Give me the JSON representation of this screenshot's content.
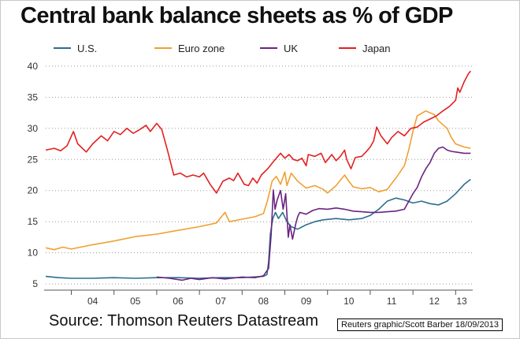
{
  "chart_data": {
    "type": "line",
    "title": "Central bank balance sheets as % of GDP",
    "xlabel": "",
    "ylabel": "",
    "x_range": [
      2003.4,
      2013.4
    ],
    "ylim": [
      4,
      41
    ],
    "y_ticks": [
      5,
      10,
      15,
      20,
      25,
      30,
      35,
      40
    ],
    "x_ticks": [
      {
        "label": "04",
        "x": 2004.5
      },
      {
        "label": "05",
        "x": 2005.5
      },
      {
        "label": "06",
        "x": 2006.5
      },
      {
        "label": "07",
        "x": 2007.5
      },
      {
        "label": "08",
        "x": 2008.5
      },
      {
        "label": "09",
        "x": 2009.5
      },
      {
        "label": "10",
        "x": 2010.5
      },
      {
        "label": "11",
        "x": 2011.5
      },
      {
        "label": "12",
        "x": 2012.5
      },
      {
        "label": "13",
        "x": 2013.5
      }
    ],
    "grid": "horizontal dotted",
    "legend_position": "top",
    "series": [
      {
        "name": "U.S.",
        "color": "#2b6e8f",
        "points": [
          [
            2003.4,
            6.2
          ],
          [
            2003.7,
            6.0
          ],
          [
            2004.0,
            5.9
          ],
          [
            2004.5,
            5.9
          ],
          [
            2005.0,
            6.0
          ],
          [
            2005.5,
            5.9
          ],
          [
            2006.0,
            6.0
          ],
          [
            2006.5,
            6.0
          ],
          [
            2007.0,
            5.9
          ],
          [
            2007.5,
            6.0
          ],
          [
            2008.0,
            6.0
          ],
          [
            2008.5,
            6.2
          ],
          [
            2008.58,
            6.5
          ],
          [
            2008.62,
            8.5
          ],
          [
            2008.66,
            13.0
          ],
          [
            2008.72,
            15.5
          ],
          [
            2008.78,
            16.5
          ],
          [
            2008.85,
            15.5
          ],
          [
            2008.95,
            16.5
          ],
          [
            2009.05,
            15.0
          ],
          [
            2009.15,
            14.2
          ],
          [
            2009.3,
            13.8
          ],
          [
            2009.5,
            14.5
          ],
          [
            2009.7,
            15.0
          ],
          [
            2009.9,
            15.3
          ],
          [
            2010.2,
            15.5
          ],
          [
            2010.5,
            15.3
          ],
          [
            2010.8,
            15.5
          ],
          [
            2011.0,
            16.0
          ],
          [
            2011.2,
            17.0
          ],
          [
            2011.4,
            18.3
          ],
          [
            2011.6,
            18.8
          ],
          [
            2011.8,
            18.5
          ],
          [
            2012.0,
            18.0
          ],
          [
            2012.2,
            18.3
          ],
          [
            2012.4,
            17.9
          ],
          [
            2012.6,
            17.7
          ],
          [
            2012.8,
            18.3
          ],
          [
            2013.0,
            19.5
          ],
          [
            2013.2,
            21.0
          ],
          [
            2013.35,
            21.8
          ]
        ]
      },
      {
        "name": "Euro zone",
        "color": "#f0a030",
        "points": [
          [
            2003.4,
            10.8
          ],
          [
            2003.6,
            10.5
          ],
          [
            2003.8,
            10.9
          ],
          [
            2004.0,
            10.6
          ],
          [
            2004.5,
            11.3
          ],
          [
            2005.0,
            11.9
          ],
          [
            2005.5,
            12.6
          ],
          [
            2006.0,
            13.0
          ],
          [
            2006.5,
            13.6
          ],
          [
            2007.0,
            14.2
          ],
          [
            2007.4,
            14.8
          ],
          [
            2007.6,
            16.5
          ],
          [
            2007.7,
            15.0
          ],
          [
            2008.0,
            15.4
          ],
          [
            2008.3,
            15.8
          ],
          [
            2008.5,
            16.3
          ],
          [
            2008.6,
            18.5
          ],
          [
            2008.7,
            21.5
          ],
          [
            2008.8,
            22.3
          ],
          [
            2008.9,
            21.0
          ],
          [
            2009.0,
            23.0
          ],
          [
            2009.05,
            20.8
          ],
          [
            2009.15,
            22.8
          ],
          [
            2009.3,
            21.5
          ],
          [
            2009.5,
            20.4
          ],
          [
            2009.7,
            20.8
          ],
          [
            2009.9,
            20.2
          ],
          [
            2010.0,
            19.6
          ],
          [
            2010.2,
            20.8
          ],
          [
            2010.4,
            22.5
          ],
          [
            2010.5,
            21.5
          ],
          [
            2010.6,
            20.6
          ],
          [
            2010.8,
            20.3
          ],
          [
            2011.0,
            20.5
          ],
          [
            2011.2,
            19.8
          ],
          [
            2011.4,
            20.2
          ],
          [
            2011.6,
            22.0
          ],
          [
            2011.8,
            24.0
          ],
          [
            2011.9,
            26.5
          ],
          [
            2012.0,
            29.5
          ],
          [
            2012.1,
            32.0
          ],
          [
            2012.3,
            32.8
          ],
          [
            2012.5,
            32.2
          ],
          [
            2012.6,
            31.2
          ],
          [
            2012.8,
            30.0
          ],
          [
            2012.9,
            28.5
          ],
          [
            2013.0,
            27.5
          ],
          [
            2013.2,
            27.0
          ],
          [
            2013.35,
            26.8
          ]
        ]
      },
      {
        "name": "UK",
        "color": "#6a2480",
        "points": [
          [
            2006.0,
            6.1
          ],
          [
            2006.3,
            5.9
          ],
          [
            2006.6,
            5.6
          ],
          [
            2006.8,
            5.9
          ],
          [
            2007.0,
            5.7
          ],
          [
            2007.3,
            6.0
          ],
          [
            2007.6,
            5.8
          ],
          [
            2008.0,
            6.1
          ],
          [
            2008.3,
            6.0
          ],
          [
            2008.5,
            6.3
          ],
          [
            2008.62,
            7.5
          ],
          [
            2008.68,
            13.0
          ],
          [
            2008.73,
            20.1
          ],
          [
            2008.77,
            17.0
          ],
          [
            2008.82,
            18.5
          ],
          [
            2008.9,
            20.0
          ],
          [
            2008.96,
            17.0
          ],
          [
            2009.02,
            19.5
          ],
          [
            2009.08,
            12.5
          ],
          [
            2009.12,
            14.5
          ],
          [
            2009.18,
            12.2
          ],
          [
            2009.25,
            14.5
          ],
          [
            2009.3,
            15.8
          ],
          [
            2009.35,
            16.5
          ],
          [
            2009.5,
            16.2
          ],
          [
            2009.65,
            16.8
          ],
          [
            2009.8,
            17.1
          ],
          [
            2010.0,
            17.0
          ],
          [
            2010.2,
            17.2
          ],
          [
            2010.4,
            17.0
          ],
          [
            2010.6,
            16.7
          ],
          [
            2010.8,
            16.6
          ],
          [
            2011.0,
            16.5
          ],
          [
            2011.2,
            16.5
          ],
          [
            2011.4,
            16.6
          ],
          [
            2011.6,
            16.7
          ],
          [
            2011.8,
            17.0
          ],
          [
            2012.0,
            19.5
          ],
          [
            2012.1,
            20.5
          ],
          [
            2012.2,
            22.2
          ],
          [
            2012.3,
            23.5
          ],
          [
            2012.4,
            24.5
          ],
          [
            2012.5,
            26.0
          ],
          [
            2012.6,
            26.8
          ],
          [
            2012.7,
            27.0
          ],
          [
            2012.8,
            26.5
          ],
          [
            2012.9,
            26.3
          ],
          [
            2013.0,
            26.2
          ],
          [
            2013.2,
            26.0
          ],
          [
            2013.35,
            26.0
          ]
        ]
      },
      {
        "name": "Japan",
        "color": "#e32020",
        "points": [
          [
            2003.4,
            26.5
          ],
          [
            2003.6,
            26.8
          ],
          [
            2003.75,
            26.4
          ],
          [
            2003.9,
            27.2
          ],
          [
            2004.05,
            29.5
          ],
          [
            2004.15,
            27.5
          ],
          [
            2004.35,
            26.2
          ],
          [
            2004.5,
            27.5
          ],
          [
            2004.7,
            28.8
          ],
          [
            2004.85,
            28.0
          ],
          [
            2005.0,
            29.5
          ],
          [
            2005.15,
            29.0
          ],
          [
            2005.3,
            30.0
          ],
          [
            2005.45,
            29.2
          ],
          [
            2005.6,
            29.8
          ],
          [
            2005.75,
            30.5
          ],
          [
            2005.85,
            29.5
          ],
          [
            2006.0,
            30.8
          ],
          [
            2006.12,
            29.8
          ],
          [
            2006.25,
            26.5
          ],
          [
            2006.4,
            22.5
          ],
          [
            2006.55,
            22.8
          ],
          [
            2006.7,
            22.2
          ],
          [
            2006.85,
            22.5
          ],
          [
            2007.0,
            22.2
          ],
          [
            2007.1,
            22.8
          ],
          [
            2007.25,
            21.0
          ],
          [
            2007.4,
            19.6
          ],
          [
            2007.55,
            21.5
          ],
          [
            2007.7,
            22.0
          ],
          [
            2007.8,
            21.6
          ],
          [
            2007.9,
            22.8
          ],
          [
            2008.05,
            21.0
          ],
          [
            2008.15,
            20.8
          ],
          [
            2008.25,
            22.0
          ],
          [
            2008.35,
            21.2
          ],
          [
            2008.45,
            22.5
          ],
          [
            2008.6,
            23.5
          ],
          [
            2008.75,
            24.8
          ],
          [
            2008.9,
            26.0
          ],
          [
            2009.0,
            25.2
          ],
          [
            2009.1,
            25.8
          ],
          [
            2009.2,
            25.0
          ],
          [
            2009.3,
            24.8
          ],
          [
            2009.4,
            25.2
          ],
          [
            2009.5,
            24.0
          ],
          [
            2009.55,
            25.8
          ],
          [
            2009.7,
            25.5
          ],
          [
            2009.85,
            26.0
          ],
          [
            2009.95,
            24.5
          ],
          [
            2010.1,
            25.8
          ],
          [
            2010.2,
            24.8
          ],
          [
            2010.3,
            25.5
          ],
          [
            2010.4,
            26.5
          ],
          [
            2010.45,
            25.0
          ],
          [
            2010.55,
            23.5
          ],
          [
            2010.65,
            25.3
          ],
          [
            2010.8,
            25.5
          ],
          [
            2010.9,
            26.2
          ],
          [
            2011.0,
            27.0
          ],
          [
            2011.08,
            28.0
          ],
          [
            2011.15,
            30.2
          ],
          [
            2011.25,
            28.8
          ],
          [
            2011.4,
            27.5
          ],
          [
            2011.5,
            28.5
          ],
          [
            2011.65,
            29.5
          ],
          [
            2011.8,
            28.8
          ],
          [
            2011.95,
            30.0
          ],
          [
            2012.1,
            30.2
          ],
          [
            2012.25,
            31.0
          ],
          [
            2012.4,
            31.5
          ],
          [
            2012.55,
            32.0
          ],
          [
            2012.7,
            32.8
          ],
          [
            2012.85,
            33.5
          ],
          [
            2013.0,
            34.5
          ],
          [
            2013.05,
            36.5
          ],
          [
            2013.1,
            35.8
          ],
          [
            2013.2,
            37.5
          ],
          [
            2013.3,
            38.8
          ],
          [
            2013.35,
            39.2
          ]
        ]
      }
    ]
  },
  "footer": {
    "source": "Source: Thomson Reuters Datastream",
    "credit": "Reuters graphic/Scott Barber 18/09/2013"
  }
}
